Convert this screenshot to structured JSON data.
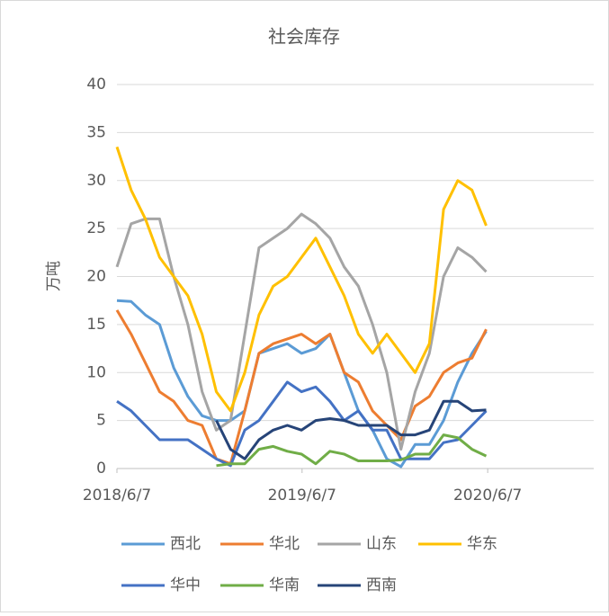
{
  "chart_data": {
    "type": "line",
    "title": "社会库存",
    "y_label": "万吨",
    "x": [
      "2018/6/7",
      "2018/7/5",
      "2018/8/2",
      "2018/8/30",
      "2018/9/27",
      "2018/10/25",
      "2018/11/22",
      "2018/12/20",
      "2019/1/17",
      "2019/2/14",
      "2019/3/14",
      "2019/4/11",
      "2019/5/9",
      "2019/6/6",
      "2019/7/4",
      "2019/8/1",
      "2019/8/29",
      "2019/9/26",
      "2019/10/24",
      "2019/11/21",
      "2019/12/19",
      "2020/1/16",
      "2020/2/13",
      "2020/3/12",
      "2020/4/9",
      "2020/5/7",
      "2020/6/4"
    ],
    "series": [
      {
        "name": "西北",
        "color": "#5B9BD5",
        "values": [
          17.5,
          17.4,
          16,
          15,
          10.5,
          7.5,
          5.5,
          5,
          5,
          6,
          12,
          12.5,
          13,
          12,
          12.5,
          14,
          10,
          6,
          4,
          1,
          0.2,
          2.5,
          2.5,
          5,
          9,
          12,
          14.3
        ]
      },
      {
        "name": "华北",
        "color": "#ED7D31",
        "values": [
          16.5,
          14,
          11,
          8,
          7,
          5,
          4.5,
          1,
          0.5,
          6,
          12,
          13,
          13.5,
          14,
          13,
          14,
          10,
          9,
          6,
          4.5,
          3,
          6.5,
          7.5,
          10,
          11,
          11.5,
          14.5
        ]
      },
      {
        "name": "山东",
        "color": "#A5A5A5",
        "values": [
          21,
          25.5,
          26,
          26,
          20,
          15,
          8,
          4,
          5,
          14,
          23,
          24,
          25,
          26.5,
          25.5,
          24,
          21,
          19,
          15,
          10,
          2,
          8,
          12,
          20,
          23,
          22,
          20.5
        ]
      },
      {
        "name": "华东",
        "color": "#FFC000",
        "values": [
          33.5,
          29,
          26,
          22,
          20,
          18,
          14,
          8,
          6,
          10,
          16,
          19,
          20,
          22,
          24,
          21,
          18,
          14,
          12,
          14,
          12,
          10,
          13,
          27,
          30,
          29,
          25.3
        ]
      },
      {
        "name": "华中",
        "color": "#4472C4",
        "values": [
          7,
          6,
          4.5,
          3,
          3,
          3,
          2,
          1,
          0.3,
          4,
          5,
          7,
          9,
          8,
          8.5,
          7,
          5,
          6,
          4,
          4,
          1,
          1,
          1,
          2.7,
          3,
          4.5,
          6
        ]
      },
      {
        "name": "华南",
        "color": "#70AD47",
        "values": [
          null,
          null,
          null,
          null,
          null,
          null,
          null,
          0.3,
          0.5,
          0.5,
          2,
          2.3,
          1.8,
          1.5,
          0.5,
          1.8,
          1.5,
          0.8,
          0.8,
          0.8,
          0.9,
          1.5,
          1.5,
          3.5,
          3.2,
          2,
          1.3
        ]
      },
      {
        "name": "西南",
        "color": "#264478",
        "values": [
          null,
          null,
          null,
          null,
          null,
          null,
          null,
          5,
          2,
          1,
          3,
          4,
          4.5,
          4,
          5,
          5.2,
          5,
          4.5,
          4.5,
          4.5,
          3.5,
          3.5,
          4,
          7,
          7,
          6,
          6.1
        ]
      }
    ],
    "xlim": [
      "2018/6/7",
      "2021/1/2"
    ],
    "xticks": [
      "2018/6/7",
      "2019/6/7",
      "2020/6/7"
    ],
    "ylim": [
      0,
      40
    ],
    "yticks": [
      0,
      5,
      10,
      15,
      20,
      25,
      30,
      35,
      40
    ],
    "grid": true
  }
}
